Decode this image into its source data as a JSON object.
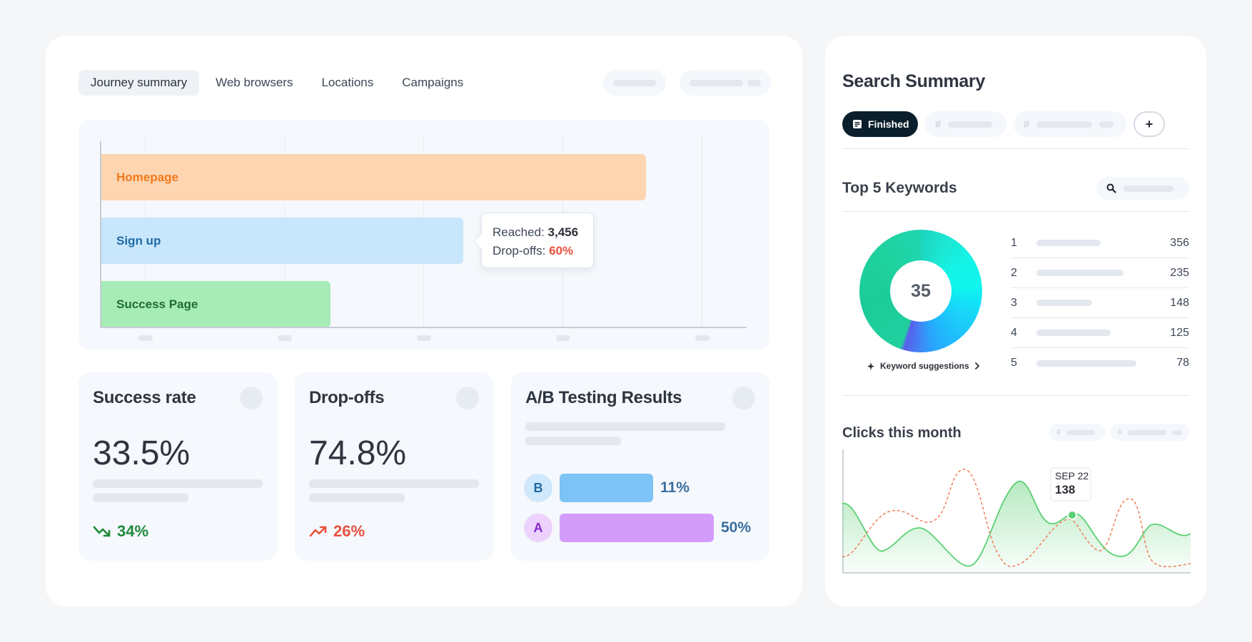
{
  "tabs": [
    {
      "label": "Journey summary",
      "active": true
    },
    {
      "label": "Web browsers",
      "active": false
    },
    {
      "label": "Locations",
      "active": false
    },
    {
      "label": "Campaigns",
      "active": false
    }
  ],
  "funnel": {
    "bars": [
      {
        "label": "Homepage",
        "fill": "#fdd5b1",
        "text_color": "#f07a1c"
      },
      {
        "label": "Sign up",
        "fill": "#c8e6fc",
        "text_color": "#1e6aa6"
      },
      {
        "label": "Success Page",
        "fill": "#a7ebb6",
        "text_color": "#1f6e35"
      }
    ],
    "tooltip": {
      "reached_label": "Reached:",
      "reached_value": "3,456",
      "dropoffs_label": "Drop-offs:",
      "dropoffs_value": "60%",
      "dropoffs_color": "#e8513f"
    }
  },
  "stats": {
    "success_rate": {
      "title": "Success rate",
      "value": "33.5%",
      "change": "34%",
      "change_color": "#1e8a3c"
    },
    "dropoffs": {
      "title": "Drop-offs",
      "value": "74.8%",
      "change": "26%",
      "change_color": "#e8513f"
    },
    "ab": {
      "title": "A/B Testing Results",
      "rows": [
        {
          "letter": "B",
          "pct": "11%",
          "fraction": 0.11,
          "bar_color": "#7dc3f5",
          "circle_bg": "#cfe8fb",
          "letter_color": "#1f6aa6"
        },
        {
          "letter": "A",
          "pct": "50%",
          "fraction": 0.5,
          "bar_color": "#d49cfa",
          "circle_bg": "#ecd2fc",
          "letter_color": "#8a2ad0"
        }
      ]
    }
  },
  "search_summary": {
    "title": "Search Summary",
    "finished_chip": "Finished",
    "hash": "#",
    "plus": "+",
    "keywords_title": "Top 5 Keywords",
    "donut_center": "35",
    "keyword_suggestions": "Keyword suggestions",
    "keywords": [
      {
        "rank": "1",
        "value": "356"
      },
      {
        "rank": "2",
        "value": "235"
      },
      {
        "rank": "3",
        "value": "148"
      },
      {
        "rank": "4",
        "value": "125"
      },
      {
        "rank": "5",
        "value": "78"
      }
    ],
    "clicks_title": "Clicks this month",
    "clicks_tooltip": {
      "date": "SEP 22",
      "value": "138"
    }
  },
  "colors": {
    "accent_dark": "#0b1e2b",
    "green_line": "#5bd072",
    "orange_dash": "#f07f5a"
  },
  "icons": {
    "trend_down": "trend-down-icon",
    "trend_up": "trend-up-icon",
    "search": "search-icon",
    "sparkle": "sparkle-icon",
    "doc": "document-icon",
    "chevron": "chevron-right-icon"
  }
}
